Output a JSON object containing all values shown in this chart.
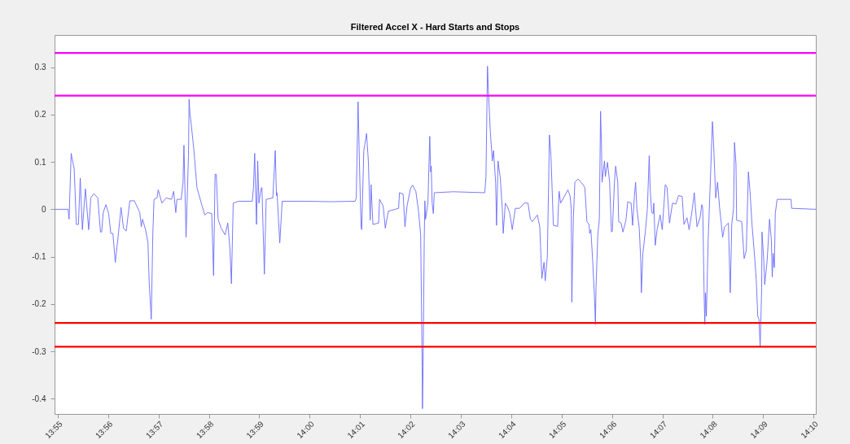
{
  "chart_data": {
    "type": "line",
    "title": "Filtered Accel X - Hard Starts and Stops",
    "xlim": [
      13.9156,
      14.1674
    ],
    "xticks": [
      {
        "value": 13.9167,
        "label": "13:55"
      },
      {
        "value": 13.9333,
        "label": "13:56"
      },
      {
        "value": 13.95,
        "label": "13:57"
      },
      {
        "value": 13.9667,
        "label": "13:58"
      },
      {
        "value": 13.9833,
        "label": "13:59"
      },
      {
        "value": 14,
        "label": "14:00"
      },
      {
        "value": 14.0167,
        "label": "14:01"
      },
      {
        "value": 14.0333,
        "label": "14:02"
      },
      {
        "value": 14.05,
        "label": "14:03"
      },
      {
        "value": 14.0667,
        "label": "14:04"
      },
      {
        "value": 14.0833,
        "label": "14:05"
      },
      {
        "value": 14.1,
        "label": "14:06"
      },
      {
        "value": 14.1167,
        "label": "14:07"
      },
      {
        "value": 14.1333,
        "label": "14:08"
      },
      {
        "value": 14.15,
        "label": "14:09"
      },
      {
        "value": 14.1667,
        "label": "14:10"
      }
    ],
    "ylim": [
      -0.432,
      0.368
    ],
    "yticks": [
      -0.4,
      -0.3,
      -0.2,
      -0.1,
      0,
      0.1,
      0.2,
      0.3
    ],
    "grid": false,
    "line_style": "solid",
    "series": [
      {
        "color": "#6a6aff",
        "x": [
          13.9159,
          13.9201,
          13.9204,
          13.9211,
          13.9221,
          13.9228,
          13.9235,
          13.9241,
          13.9248,
          13.9258,
          13.9269,
          13.9276,
          13.9286,
          13.9299,
          13.9308,
          13.9312,
          13.9317,
          13.9326,
          13.9335,
          13.9342,
          13.9349,
          13.9357,
          13.9366,
          13.9376,
          13.9384,
          13.9393,
          13.9405,
          13.942,
          13.9438,
          13.9443,
          13.9447,
          13.9457,
          13.9465,
          13.9469,
          13.9476,
          13.9481,
          13.9485,
          13.9495,
          13.9499,
          13.9511,
          13.9525,
          13.9543,
          13.955,
          13.9557,
          13.9561,
          13.9575,
          13.9581,
          13.9584,
          13.9591,
          13.9599,
          13.9601,
          13.9604,
          13.9609,
          13.9617,
          13.9627,
          13.9644,
          13.9653,
          13.9662,
          13.9676,
          13.9682,
          13.9687,
          13.9691,
          13.9697,
          13.9707,
          13.972,
          13.9729,
          13.9736,
          13.9741,
          13.9747,
          13.9765,
          13.981,
          13.9814,
          13.9818,
          13.9824,
          13.9828,
          13.9832,
          13.9839,
          13.9842,
          13.985,
          13.9856,
          13.9878,
          13.9886,
          13.989,
          13.9892,
          13.9901,
          13.9909,
          13.9981,
          14.0071,
          14.015,
          14.0154,
          14.016,
          14.0166,
          14.017,
          14.0172,
          14.0179,
          14.0188,
          14.0194,
          14.02,
          14.0203,
          14.0209,
          14.0228,
          14.0231,
          14.0243,
          14.025,
          14.026,
          14.0294,
          14.0297,
          14.0309,
          14.0315,
          14.0322,
          14.0333,
          14.034,
          14.0351,
          14.036,
          14.0367,
          14.0372,
          14.0373,
          14.0375,
          14.0379,
          14.0381,
          14.0383,
          14.0391,
          14.0397,
          14.04,
          14.0402,
          14.0405,
          14.0409,
          14.0412,
          14.0475,
          14.0579,
          14.0583,
          14.0588,
          14.0591,
          14.0597,
          14.0604,
          14.0608,
          14.0615,
          14.0618,
          14.0623,
          14.063,
          14.0637,
          14.064,
          14.0647,
          14.0655,
          14.0662,
          14.067,
          14.068,
          14.0694,
          14.071,
          14.0722,
          14.073,
          14.0736,
          14.0753,
          14.0761,
          14.0768,
          14.0775,
          14.0779,
          14.0786,
          14.0793,
          14.0798,
          14.0806,
          14.082,
          14.0825,
          14.083,
          14.0854,
          14.0861,
          14.0865,
          14.0867,
          14.0872,
          14.0877,
          14.0888,
          14.0904,
          14.091,
          14.0917,
          14.0924,
          14.0926,
          14.093,
          14.0936,
          14.0942,
          14.0945,
          14.0947,
          14.0953,
          14.0958,
          14.0962,
          14.0965,
          14.0967,
          14.0975,
          14.0978,
          14.0985,
          14.0992,
          14.0998,
          14.1001,
          14.1008,
          14.1012,
          14.1019,
          14.1022,
          14.103,
          14.1036,
          14.1046,
          14.1052,
          14.1063,
          14.1068,
          14.1074,
          14.1078,
          14.1082,
          14.109,
          14.1095,
          14.1097,
          14.1102,
          14.111,
          14.1117,
          14.1123,
          14.1126,
          14.1131,
          14.1136,
          14.1138,
          14.1143,
          14.1149,
          14.1159,
          14.1166,
          14.1172,
          14.1176,
          14.1182,
          14.119,
          14.12,
          14.1211,
          14.122,
          14.1232,
          14.1238,
          14.1248,
          14.1255,
          14.1266,
          14.1272,
          14.1281,
          14.1291,
          14.1297,
          14.13,
          14.1305,
          14.1307,
          14.1309,
          14.1312,
          14.1318,
          14.1325,
          14.1332,
          14.1334,
          14.1341,
          14.1343,
          14.1349,
          14.1356,
          14.1366,
          14.1372,
          14.1385,
          14.1391,
          14.1393,
          14.1396,
          14.1402,
          14.1405,
          14.141,
          14.1412,
          14.1429,
          14.1437,
          14.1444,
          14.1451,
          14.1456,
          14.1463,
          14.147,
          14.1477,
          14.1482,
          14.1486,
          14.149,
          14.1495,
          14.1496,
          14.1502,
          14.1505,
          14.1513,
          14.1521,
          14.1527,
          14.153,
          14.1533,
          14.1537,
          14.154,
          14.1546,
          14.1592,
          14.1594,
          14.1674
        ],
        "values": [
          0,
          0,
          -0.021,
          0.118,
          0.085,
          -0.032,
          -0.032,
          0.066,
          -0.043,
          0.043,
          -0.043,
          0.024,
          0.033,
          0.024,
          -0.048,
          -0.048,
          -0.007,
          0.01,
          -0.009,
          -0.051,
          -0.051,
          -0.112,
          -0.059,
          0.004,
          -0.04,
          -0.046,
          0.018,
          0.018,
          -0.007,
          -0.037,
          -0.021,
          -0.043,
          -0.071,
          -0.154,
          -0.232,
          -0.054,
          0.021,
          0.024,
          0.041,
          0.013,
          0.024,
          0.021,
          0.038,
          -0.007,
          0.021,
          0.021,
          0.057,
          0.135,
          -0.059,
          0.113,
          0.232,
          0.202,
          0.174,
          0.124,
          0.046,
          0.007,
          -0.012,
          -0.007,
          -0.009,
          -0.14,
          0.074,
          0.074,
          -0.021,
          -0.04,
          -0.054,
          -0.029,
          -0.082,
          -0.157,
          0.013,
          0.017,
          0.017,
          0.046,
          0.118,
          -0.032,
          0.102,
          0.013,
          0.043,
          0.046,
          -0.137,
          0.021,
          0.024,
          0.124,
          0.029,
          0.035,
          -0.071,
          0.017,
          0.017,
          0.016,
          0.017,
          0.024,
          0.227,
          0.057,
          -0.037,
          -0.043,
          0.124,
          0.16,
          0.102,
          -0.023,
          0.052,
          -0.032,
          -0.029,
          0.021,
          0.007,
          -0.04,
          -0.004,
          0.002,
          0.035,
          0.032,
          -0.037,
          0.007,
          0.043,
          0.051,
          0.038,
          -0.004,
          -0.054,
          -0.332,
          -0.421,
          -0.332,
          -0.054,
          0.018,
          -0.021,
          0.013,
          0.154,
          0.079,
          0.091,
          0.013,
          -0.009,
          0.035,
          0.037,
          0.035,
          0.068,
          0.302,
          0.252,
          0.168,
          0.102,
          0.124,
          0.057,
          -0.034,
          0.102,
          0.068,
          0.002,
          -0.051,
          0.013,
          0.004,
          -0.009,
          -0.043,
          0.002,
          0.002,
          0.013,
          0.013,
          -0.021,
          -0.026,
          -0.012,
          -0.037,
          -0.146,
          -0.112,
          -0.151,
          -0.101,
          0.157,
          0.113,
          -0.034,
          -0.036,
          0.038,
          0.013,
          0.041,
          0.029,
          0.002,
          -0.196,
          -0.021,
          0.057,
          0.064,
          0.052,
          0.046,
          -0.026,
          -0.032,
          -0.051,
          -0.043,
          -0.109,
          -0.187,
          -0.243,
          -0.165,
          -0.054,
          -0.021,
          0.207,
          0.141,
          0.057,
          0.102,
          0.069,
          0.099,
          0.057,
          -0.048,
          -0.046,
          0.057,
          0.091,
          0.057,
          -0.026,
          -0.029,
          -0.048,
          -0.023,
          0.016,
          0.013,
          -0.034,
          0.029,
          0.057,
          0.002,
          -0.04,
          -0.109,
          -0.176,
          -0.093,
          -0.048,
          0.002,
          0.113,
          0.046,
          -0.007,
          -0.009,
          0.013,
          -0.076,
          -0.043,
          -0.012,
          -0.043,
          0.013,
          0.052,
          0.046,
          -0.029,
          0.013,
          0.011,
          0.029,
          0.027,
          -0.032,
          -0.018,
          -0.043,
          0.002,
          0.035,
          -0.037,
          -0.018,
          0.01,
          0.002,
          -0.193,
          -0.243,
          -0.176,
          -0.226,
          -0.065,
          0.057,
          0.185,
          0.168,
          0.057,
          0.024,
          0.057,
          0.002,
          -0.059,
          -0.037,
          -0.029,
          -0.176,
          -0.121,
          -0.032,
          0.002,
          0.141,
          0.096,
          -0.023,
          -0.026,
          -0.104,
          -0.087,
          0.079,
          0.041,
          -0.032,
          -0.087,
          -0.148,
          -0.226,
          -0.232,
          -0.29,
          -0.165,
          -0.048,
          -0.109,
          -0.159,
          -0.109,
          -0.021,
          -0.065,
          -0.143,
          -0.093,
          -0.123,
          -0.009,
          0.021,
          0.021,
          0.002,
          0
        ]
      }
    ],
    "ref_lines": [
      {
        "axis": "y",
        "value": 0.33,
        "color": "#ff00ff"
      },
      {
        "axis": "y",
        "value": 0.24,
        "color": "#ff00ff"
      },
      {
        "axis": "y",
        "value": -0.24,
        "color": "#ff0000"
      },
      {
        "axis": "y",
        "value": -0.29,
        "color": "#ff0000"
      }
    ]
  }
}
